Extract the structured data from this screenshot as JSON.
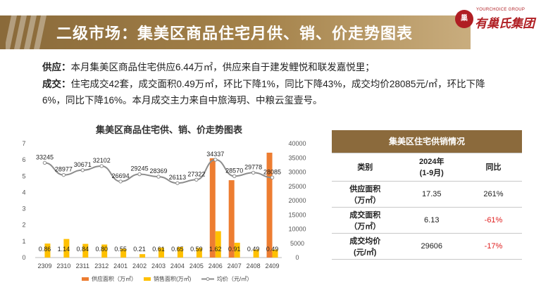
{
  "header": {
    "title": "二级市场：集美区商品住宅月供、销、价走势图表",
    "logo_sub": "YOURCHOICE GROUP",
    "logo_main": "有巢氏集团",
    "logo_mark": "巢"
  },
  "supply": {
    "label": "供应：",
    "text": "本月集美区商品住宅供应6.44万㎡，供应来自于建发鲤悦和联发嘉悦里；"
  },
  "deal": {
    "label": "成交：",
    "text": "住宅成交42套，成交面积0.49万㎡，环比下降1%，同比下降43%，成交均价28085元/㎡，环比下降6%，同比下降16%。本月成交主力来自中旅海玥、中粮云玺壹号。"
  },
  "colors": {
    "supply_bar": "#ed7d31",
    "sales_bar": "#ffc000",
    "price_line": "#8c8c8c",
    "accent": "#8b6a3c"
  },
  "chart_data": {
    "type": "bar",
    "title": "集美区商品住宅供、销、价走势图表",
    "categories": [
      "2309",
      "2310",
      "2311",
      "2312",
      "2401",
      "2402",
      "2403",
      "2404",
      "2405",
      "2406",
      "2407",
      "2408",
      "2409"
    ],
    "series": [
      {
        "name": "供应面积（万㎡）",
        "axis": "left",
        "kind": "bar",
        "values": [
          0,
          0,
          0,
          0,
          0,
          0,
          0,
          0,
          0,
          6.1,
          4.75,
          0,
          6.44
        ]
      },
      {
        "name": "销售面积(万㎡)",
        "axis": "left",
        "kind": "bar",
        "values": [
          0.86,
          1.14,
          0.84,
          0.8,
          0.55,
          0.21,
          0.61,
          0.65,
          0.59,
          1.62,
          0.91,
          0.49,
          0.49
        ],
        "labels": [
          "0.86",
          "1.14",
          "0.84",
          "0.80",
          "0.55",
          "0.21",
          "0.61",
          "0.65",
          "0.59",
          "1.62",
          "0.91",
          "0.49",
          "0.49"
        ]
      },
      {
        "name": "均价（元/㎡）",
        "axis": "right",
        "kind": "line",
        "values": [
          33245,
          28977,
          30671,
          32102,
          26694,
          29245,
          28369,
          26113,
          27322,
          34337,
          28570,
          29778,
          28085
        ]
      }
    ],
    "y_left": {
      "min": 0,
      "max": 7,
      "ticks": [
        "0",
        "1",
        "2",
        "3",
        "4",
        "5",
        "6",
        "7"
      ]
    },
    "y_right": {
      "min": 0,
      "max": 40000,
      "ticks": [
        "0",
        "5000",
        "10000",
        "15000",
        "20000",
        "25000",
        "30000",
        "35000",
        "40000"
      ]
    },
    "legend_position": "bottom",
    "grid": false
  },
  "table": {
    "title": "集美区住宅供销情况",
    "headers": [
      "类别",
      "2024年\n(1-9月)",
      "同比"
    ],
    "rows": [
      {
        "label": "供应面积\n（万㎡）",
        "value": "17.35",
        "yoy": "261%",
        "neg": false
      },
      {
        "label": "成交面积\n（万㎡）",
        "value": "6.13",
        "yoy": "-61%",
        "neg": true
      },
      {
        "label": "成交均价\n(元/㎡)",
        "value": "29606",
        "yoy": "-17%",
        "neg": true
      }
    ]
  }
}
